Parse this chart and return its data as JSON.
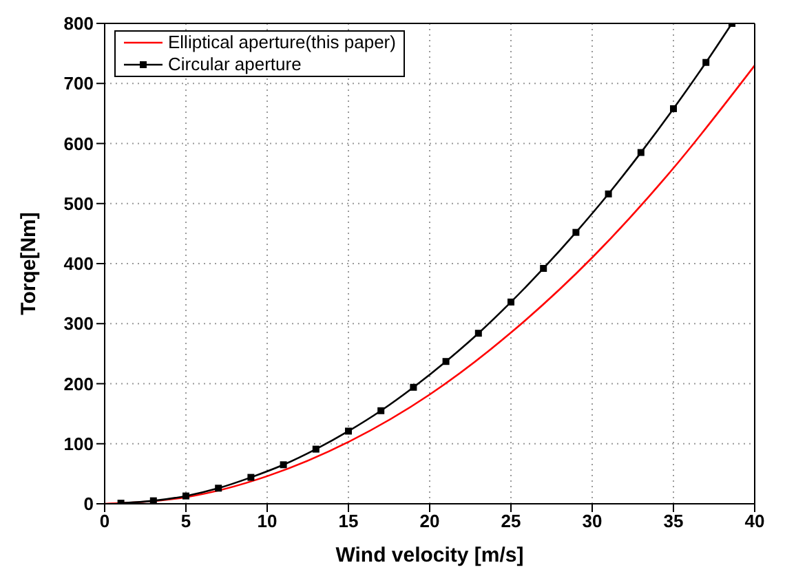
{
  "chart_data": {
    "type": "line",
    "xlabel": "Wind velocity [m/s]",
    "ylabel": "Torqe[Nm]",
    "xlim": [
      0,
      40
    ],
    "xticks": [
      0,
      5,
      10,
      15,
      20,
      25,
      30,
      35,
      40
    ],
    "ylim": [
      0,
      800
    ],
    "yticks": [
      0,
      100,
      200,
      300,
      400,
      500,
      600,
      700,
      800
    ],
    "grid": true,
    "legend": "top left",
    "series": [
      {
        "name": "Elliptical aperture(this paper)",
        "color": "#ff0000",
        "marker": "none",
        "x": [
          0,
          5,
          10,
          15,
          20,
          25,
          30,
          35,
          40
        ],
        "values": [
          0,
          11,
          46,
          103,
          182,
          285,
          410,
          559,
          730
        ]
      },
      {
        "name": "Circular aperture",
        "color": "#000000",
        "marker": "square",
        "x": [
          1,
          3,
          5,
          7,
          9,
          11,
          13,
          15,
          17,
          19,
          21,
          23,
          25,
          27,
          29,
          31,
          33,
          35,
          37,
          38.6
        ],
        "values": [
          1,
          5,
          13,
          26,
          44,
          65,
          91,
          121,
          155,
          194,
          237,
          284,
          336,
          392,
          452,
          516,
          585,
          658,
          735,
          800
        ]
      }
    ]
  }
}
